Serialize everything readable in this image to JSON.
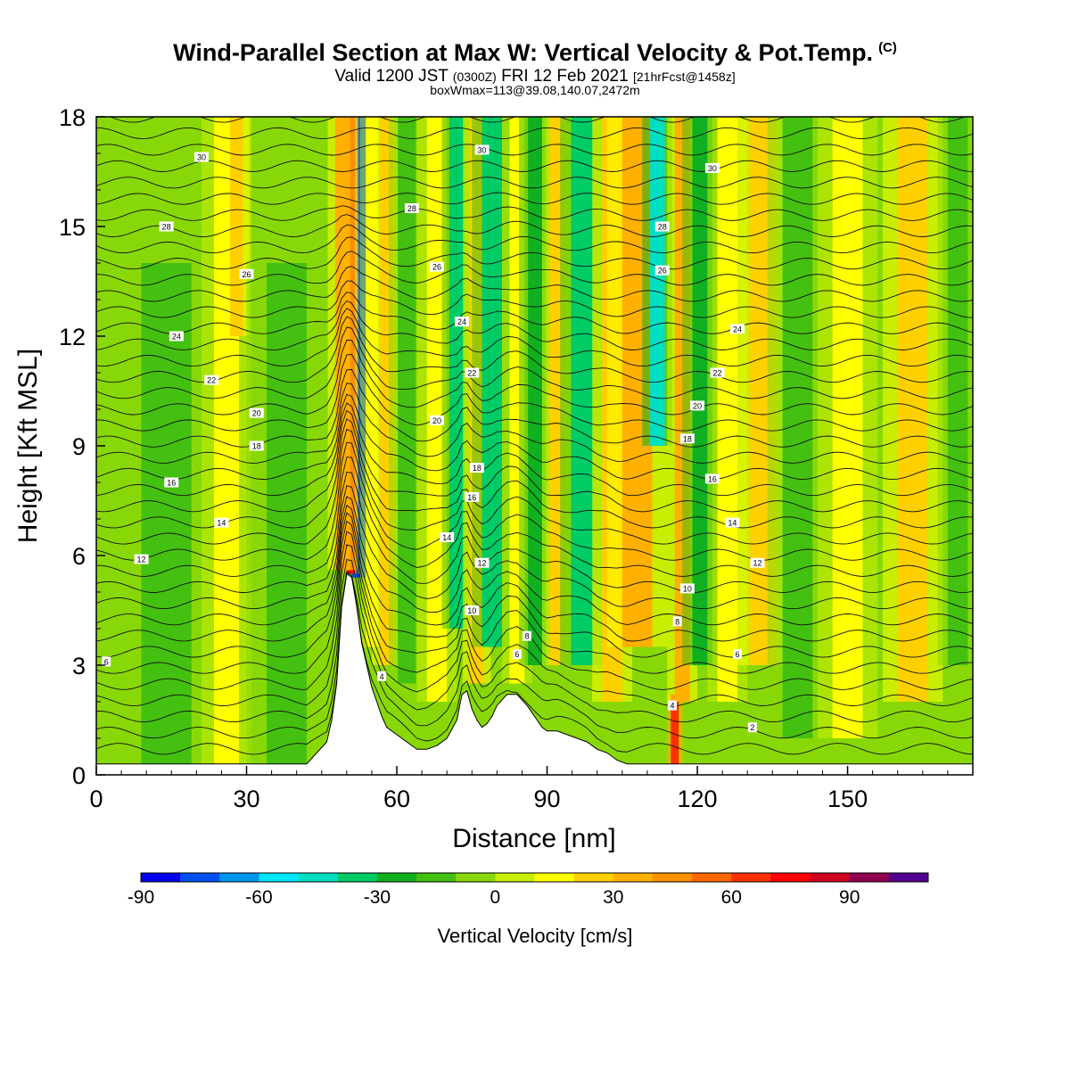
{
  "header": {
    "title": "Wind-Parallel Section at Max W: Vertical Velocity & Pot.Temp.",
    "title_mark": "(C)",
    "valid_prefix": "Valid 1200 JST",
    "valid_utc": "(0300Z)",
    "valid_date": "FRI 12 Feb 2021",
    "forecast_info": "[21hrFcst@1458z]",
    "box_info": "boxWmax=113@39.08,140.07,2472m"
  },
  "chart_data": {
    "type": "heatmap",
    "xlabel": "Distance [nm]",
    "ylabel": "Height [Kft MSL]",
    "xlim": [
      0,
      175
    ],
    "ylim": [
      0,
      18
    ],
    "x_ticks": [
      0,
      30,
      60,
      90,
      120,
      150
    ],
    "y_ticks": [
      0,
      3,
      6,
      9,
      12,
      15,
      18
    ],
    "colorbar": {
      "title": "Vertical Velocity [cm/s]",
      "boundaries": [
        -90,
        -80,
        -70,
        -60,
        -50,
        -40,
        -30,
        -20,
        -10,
        0,
        10,
        20,
        30,
        40,
        50,
        60,
        70,
        80,
        90,
        100,
        110
      ],
      "tick_labels": [
        -90,
        -60,
        -30,
        0,
        30,
        60,
        90
      ],
      "colors": [
        "#0000ee",
        "#0050f0",
        "#0096f0",
        "#00e6f8",
        "#00e0c0",
        "#00cc66",
        "#10b020",
        "#44c010",
        "#88d808",
        "#c8ee04",
        "#ffff00",
        "#ffd000",
        "#ffb000",
        "#ff9000",
        "#ff6800",
        "#ff3000",
        "#ff0000",
        "#d00020",
        "#900050",
        "#500090"
      ]
    },
    "background_color": "#88d808",
    "terrain_height_profile": {
      "x": [
        0,
        42,
        44,
        46,
        47,
        48,
        49,
        50,
        51,
        52,
        53,
        54,
        55,
        56,
        57,
        58,
        60,
        62,
        64,
        66,
        68,
        70,
        72,
        73,
        74,
        75,
        76,
        77,
        78,
        79,
        80,
        82,
        84,
        86,
        88,
        89,
        90,
        92,
        94,
        96,
        98,
        100,
        102,
        104,
        106,
        108,
        110,
        112,
        114,
        116,
        118,
        120,
        175
      ],
      "height_kft": [
        0.3,
        0.3,
        0.6,
        0.9,
        1.5,
        2.5,
        4.6,
        5.5,
        5.4,
        4.6,
        3.6,
        3.0,
        2.4,
        2.0,
        1.6,
        1.3,
        1.1,
        0.9,
        0.7,
        0.7,
        0.8,
        1.0,
        1.5,
        2.2,
        2.3,
        1.8,
        1.5,
        1.3,
        1.4,
        1.6,
        1.9,
        2.2,
        2.2,
        1.9,
        1.5,
        1.3,
        1.2,
        1.2,
        1.1,
        1.0,
        0.9,
        0.7,
        0.6,
        0.4,
        0.3,
        0.3,
        0.3,
        0.3,
        0.3,
        0.3,
        0.3,
        0.3,
        0.3
      ]
    },
    "vertical_velocity_bands": [
      {
        "x": 52.5,
        "half_width_nm": 1.4,
        "w_cm_s": -75,
        "z_bottom_kft": 5.4,
        "z_top_kft": 18
      },
      {
        "x": 50.8,
        "half_width_nm": 0.8,
        "w_cm_s": 75,
        "z_bottom_kft": 5.5,
        "z_top_kft": 18
      },
      {
        "x": 49.2,
        "half_width_nm": 1.5,
        "w_cm_s": 35,
        "z_bottom_kft": 5.6,
        "z_top_kft": 18
      },
      {
        "x": 55,
        "half_width_nm": 1.2,
        "w_cm_s": 15,
        "z_bottom_kft": 3.5,
        "z_top_kft": 18
      },
      {
        "x": 58,
        "half_width_nm": 1.5,
        "w_cm_s": 25,
        "z_bottom_kft": 3.0,
        "z_top_kft": 18
      },
      {
        "x": 62,
        "half_width_nm": 1.8,
        "w_cm_s": -15,
        "z_bottom_kft": 2.5,
        "z_top_kft": 18
      },
      {
        "x": 68,
        "half_width_nm": 2.0,
        "w_cm_s": 15,
        "z_bottom_kft": 2.0,
        "z_top_kft": 18
      },
      {
        "x": 72,
        "half_width_nm": 1.5,
        "w_cm_s": -35,
        "z_bottom_kft": 4.0,
        "z_top_kft": 18
      },
      {
        "x": 76,
        "half_width_nm": 1.4,
        "w_cm_s": 25,
        "z_bottom_kft": 2.5,
        "z_top_kft": 18
      },
      {
        "x": 79,
        "half_width_nm": 2.0,
        "w_cm_s": -35,
        "z_bottom_kft": 3.5,
        "z_top_kft": 18
      },
      {
        "x": 84,
        "half_width_nm": 1.5,
        "w_cm_s": 15,
        "z_bottom_kft": 2.5,
        "z_top_kft": 18
      },
      {
        "x": 88,
        "half_width_nm": 1.8,
        "w_cm_s": -25,
        "z_bottom_kft": 3.0,
        "z_top_kft": 18
      },
      {
        "x": 92,
        "half_width_nm": 1.5,
        "w_cm_s": 25,
        "z_bottom_kft": 3.0,
        "z_top_kft": 18
      },
      {
        "x": 97,
        "half_width_nm": 2.2,
        "w_cm_s": -35,
        "z_bottom_kft": 3.0,
        "z_top_kft": 18
      },
      {
        "x": 103,
        "half_width_nm": 2.0,
        "w_cm_s": 25,
        "z_bottom_kft": 2.0,
        "z_top_kft": 18
      },
      {
        "x": 108,
        "half_width_nm": 3.0,
        "w_cm_s": 35,
        "z_bottom_kft": 3.5,
        "z_top_kft": 18
      },
      {
        "x": 112,
        "half_width_nm": 1.5,
        "w_cm_s": -45,
        "z_bottom_kft": 9.0,
        "z_top_kft": 18
      },
      {
        "x": 115.5,
        "half_width_nm": 0.8,
        "w_cm_s": 65,
        "z_bottom_kft": 0.3,
        "z_top_kft": 2.2
      },
      {
        "x": 117,
        "half_width_nm": 1.5,
        "w_cm_s": 35,
        "z_bottom_kft": 2.0,
        "z_top_kft": 18
      },
      {
        "x": 121,
        "half_width_nm": 2.0,
        "w_cm_s": -25,
        "z_bottom_kft": 3.0,
        "z_top_kft": 18
      },
      {
        "x": 126,
        "half_width_nm": 2.0,
        "w_cm_s": 15,
        "z_bottom_kft": 2.0,
        "z_top_kft": 18
      },
      {
        "x": 133,
        "half_width_nm": 2.5,
        "w_cm_s": 25,
        "z_bottom_kft": 3.0,
        "z_top_kft": 18
      },
      {
        "x": 140,
        "half_width_nm": 3.0,
        "w_cm_s": -15,
        "z_bottom_kft": 1.0,
        "z_top_kft": 18
      },
      {
        "x": 150,
        "half_width_nm": 3.0,
        "w_cm_s": 15,
        "z_bottom_kft": 1.0,
        "z_top_kft": 18
      },
      {
        "x": 163,
        "half_width_nm": 3.0,
        "w_cm_s": 25,
        "z_bottom_kft": 2.0,
        "z_top_kft": 18
      },
      {
        "x": 172,
        "half_width_nm": 2.0,
        "w_cm_s": -15,
        "z_bottom_kft": 3.0,
        "z_top_kft": 18
      },
      {
        "x": 14,
        "half_width_nm": 5.0,
        "w_cm_s": -15,
        "z_bottom_kft": 0.3,
        "z_top_kft": 14
      },
      {
        "x": 26,
        "half_width_nm": 2.5,
        "w_cm_s": 15,
        "z_bottom_kft": 0.3,
        "z_top_kft": 18
      },
      {
        "x": 28,
        "half_width_nm": 1.3,
        "w_cm_s": 25,
        "z_bottom_kft": 12,
        "z_top_kft": 18
      },
      {
        "x": 38,
        "half_width_nm": 4.0,
        "w_cm_s": -15,
        "z_bottom_kft": 0.3,
        "z_top_kft": 14
      }
    ],
    "isentrope_labels": [
      {
        "x": 21,
        "y": 16.9,
        "label": "30"
      },
      {
        "x": 14,
        "y": 15.0,
        "label": "28"
      },
      {
        "x": 30,
        "y": 13.7,
        "label": "26"
      },
      {
        "x": 16,
        "y": 12.0,
        "label": "24"
      },
      {
        "x": 23,
        "y": 10.8,
        "label": "22"
      },
      {
        "x": 32,
        "y": 9.9,
        "label": "20"
      },
      {
        "x": 32,
        "y": 9.0,
        "label": "18"
      },
      {
        "x": 15,
        "y": 8.0,
        "label": "16"
      },
      {
        "x": 25,
        "y": 6.9,
        "label": "14"
      },
      {
        "x": 9,
        "y": 5.9,
        "label": "12"
      },
      {
        "x": 2,
        "y": 3.1,
        "label": "6"
      },
      {
        "x": 57,
        "y": 2.7,
        "label": "4"
      },
      {
        "x": 77,
        "y": 17.1,
        "label": "30"
      },
      {
        "x": 63,
        "y": 15.5,
        "label": "28"
      },
      {
        "x": 68,
        "y": 13.9,
        "label": "26"
      },
      {
        "x": 73,
        "y": 12.4,
        "label": "24"
      },
      {
        "x": 75,
        "y": 11.0,
        "label": "22"
      },
      {
        "x": 68,
        "y": 9.7,
        "label": "20"
      },
      {
        "x": 76,
        "y": 8.4,
        "label": "18"
      },
      {
        "x": 75,
        "y": 7.6,
        "label": "16"
      },
      {
        "x": 70,
        "y": 6.5,
        "label": "14"
      },
      {
        "x": 77,
        "y": 5.8,
        "label": "12"
      },
      {
        "x": 75,
        "y": 4.5,
        "label": "10"
      },
      {
        "x": 86,
        "y": 3.8,
        "label": "8"
      },
      {
        "x": 84,
        "y": 3.3,
        "label": "6"
      },
      {
        "x": 123,
        "y": 16.6,
        "label": "30"
      },
      {
        "x": 113,
        "y": 15.0,
        "label": "28"
      },
      {
        "x": 113,
        "y": 13.8,
        "label": "26"
      },
      {
        "x": 128,
        "y": 12.2,
        "label": "24"
      },
      {
        "x": 124,
        "y": 11.0,
        "label": "22"
      },
      {
        "x": 120,
        "y": 10.1,
        "label": "20"
      },
      {
        "x": 118,
        "y": 9.2,
        "label": "18"
      },
      {
        "x": 123,
        "y": 8.1,
        "label": "16"
      },
      {
        "x": 127,
        "y": 6.9,
        "label": "14"
      },
      {
        "x": 132,
        "y": 5.8,
        "label": "12"
      },
      {
        "x": 118,
        "y": 5.1,
        "label": "10"
      },
      {
        "x": 116,
        "y": 4.2,
        "label": "8"
      },
      {
        "x": 128,
        "y": 3.3,
        "label": "6"
      },
      {
        "x": 115,
        "y": 1.9,
        "label": "4"
      },
      {
        "x": 131,
        "y": 1.3,
        "label": "2"
      }
    ]
  }
}
